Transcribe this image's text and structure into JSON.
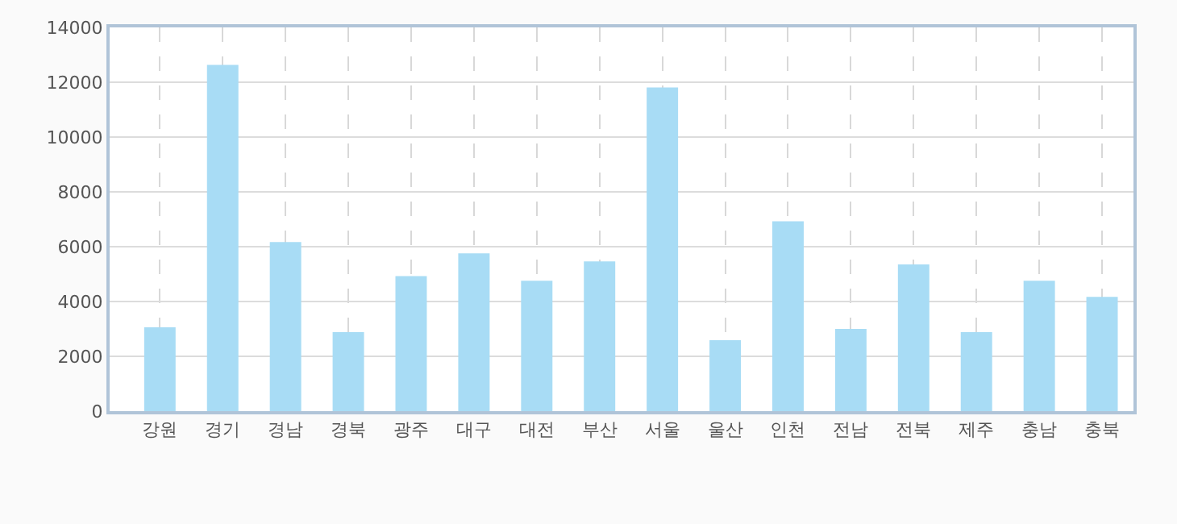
{
  "chart_data": {
    "type": "bar",
    "categories": [
      "강원",
      "경기",
      "경남",
      "경북",
      "광주",
      "대구",
      "대전",
      "부산",
      "서울",
      "울산",
      "인천",
      "전남",
      "전북",
      "제주",
      "충남",
      "충북"
    ],
    "values": [
      3060,
      12630,
      6170,
      2880,
      4930,
      5760,
      4760,
      5460,
      11810,
      2590,
      6930,
      3000,
      5350,
      2880,
      4760,
      4170
    ],
    "color": "#a8dcf5",
    "ylim": [
      0,
      14000
    ],
    "yticks": [
      0,
      2000,
      4000,
      6000,
      8000,
      10000,
      12000,
      14000
    ],
    "grid": true
  }
}
